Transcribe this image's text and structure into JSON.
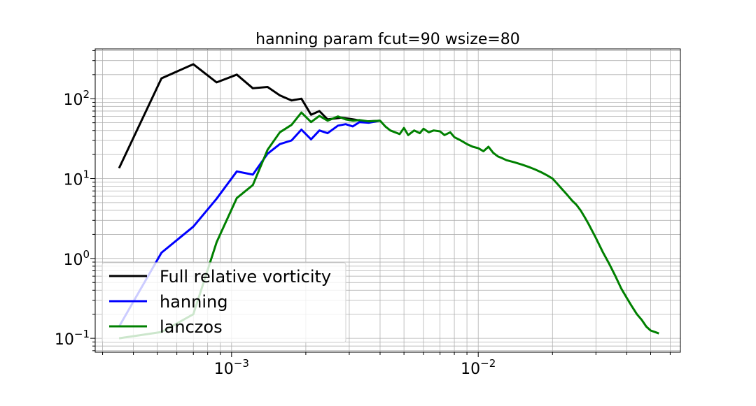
{
  "chart_data": {
    "type": "line",
    "title": "hanning param fcut=90 wsize=80",
    "xlabel": "",
    "ylabel": "",
    "xscale": "log",
    "yscale": "log",
    "xlim": [
      0.00028,
      0.066
    ],
    "ylim": [
      0.067,
      420
    ],
    "grid": true,
    "legend_position": "lower-left",
    "x_ticks": [
      {
        "value": 0.001,
        "base": "10",
        "exp": "−3"
      },
      {
        "value": 0.01,
        "base": "10",
        "exp": "−2"
      }
    ],
    "y_ticks": [
      {
        "value": 0.1,
        "base": "10",
        "exp": "−1"
      },
      {
        "value": 1,
        "base": "10",
        "exp": "0"
      },
      {
        "value": 10,
        "base": "10",
        "exp": "1"
      },
      {
        "value": 100,
        "base": "10",
        "exp": "2"
      }
    ],
    "series": [
      {
        "name": "Full relative vorticity",
        "color": "#000000",
        "x": [
          0.00035,
          0.00052,
          0.0007,
          0.00087,
          0.00105,
          0.00122,
          0.0014,
          0.00157,
          0.00175,
          0.00192,
          0.0021,
          0.00227,
          0.00245,
          0.0028,
          0.0035,
          0.004
        ],
        "y": [
          13.5,
          180,
          270,
          160,
          200,
          135,
          140,
          110,
          95,
          100,
          63,
          70,
          55,
          58,
          52,
          53
        ]
      },
      {
        "name": "hanning",
        "color": "#0000ff",
        "x": [
          0.00035,
          0.00052,
          0.0007,
          0.00087,
          0.00105,
          0.00122,
          0.0014,
          0.00157,
          0.00175,
          0.00192,
          0.0021,
          0.00227,
          0.00245,
          0.0027,
          0.0029,
          0.0031,
          0.0033,
          0.0036,
          0.004
        ],
        "y": [
          0.14,
          1.18,
          2.5,
          5.6,
          12.3,
          11.2,
          20.5,
          27,
          30,
          41,
          31,
          40,
          37,
          46,
          48,
          45,
          51,
          50,
          53
        ]
      },
      {
        "name": "lanczos",
        "color": "#008000",
        "x": [
          0.00035,
          0.00052,
          0.0007,
          0.00087,
          0.00105,
          0.00122,
          0.0014,
          0.00157,
          0.00175,
          0.00192,
          0.0021,
          0.00227,
          0.00245,
          0.0027,
          0.0029,
          0.0031,
          0.0033,
          0.0036,
          0.004,
          0.0042,
          0.0044,
          0.0046,
          0.0048,
          0.005,
          0.0052,
          0.0055,
          0.0058,
          0.006,
          0.0063,
          0.0066,
          0.007,
          0.0073,
          0.0077,
          0.008,
          0.0085,
          0.009,
          0.0095,
          0.01,
          0.0105,
          0.011,
          0.0115,
          0.012,
          0.0125,
          0.013,
          0.014,
          0.015,
          0.016,
          0.017,
          0.018,
          0.019,
          0.02,
          0.021,
          0.022,
          0.023,
          0.024,
          0.025,
          0.026,
          0.027,
          0.028,
          0.029,
          0.03,
          0.032,
          0.034,
          0.036,
          0.038,
          0.04,
          0.042,
          0.044,
          0.046,
          0.048,
          0.05,
          0.052,
          0.054
        ],
        "y": [
          0.1,
          0.12,
          0.2,
          1.6,
          5.7,
          8.3,
          23,
          38,
          47,
          67,
          51,
          61,
          53,
          60,
          55,
          53,
          54,
          52,
          53,
          45,
          40,
          38,
          36,
          43,
          35,
          40,
          37,
          42,
          38,
          40,
          39,
          35,
          38,
          33,
          30,
          27,
          25,
          24,
          22,
          25,
          21,
          19,
          18,
          17,
          16,
          15,
          14,
          13,
          12,
          11,
          10,
          8.5,
          7.2,
          6.2,
          5.3,
          4.7,
          4.0,
          3.3,
          2.7,
          2.2,
          1.8,
          1.2,
          0.85,
          0.6,
          0.42,
          0.32,
          0.25,
          0.2,
          0.17,
          0.14,
          0.125,
          0.12,
          0.115
        ]
      }
    ]
  }
}
